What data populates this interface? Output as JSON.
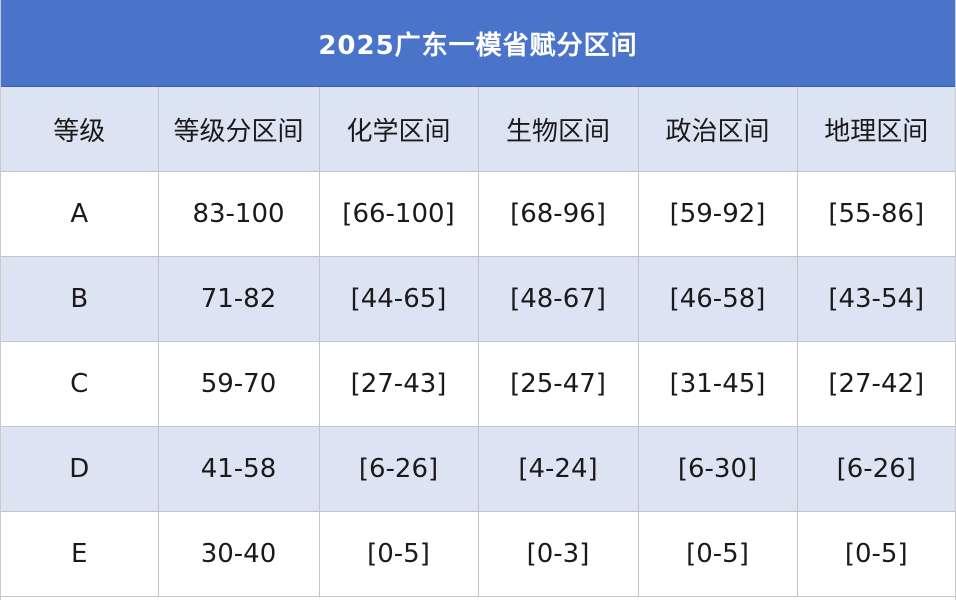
{
  "title": "2025广东一模省赋分区间",
  "headers": [
    "等级",
    "等级分区间",
    "化学区间",
    "生物区间",
    "政治区间",
    "地理区间"
  ],
  "rows": [
    [
      "A",
      "83-100",
      "[66-100]",
      "[68-96]",
      "[59-92]",
      "[55-86]"
    ],
    [
      "B",
      "71-82",
      "[44-65]",
      "[48-67]",
      "[46-58]",
      "[43-54]"
    ],
    [
      "C",
      "59-70",
      "[27-43]",
      "[25-47]",
      "[31-45]",
      "[27-42]"
    ],
    [
      "D",
      "41-58",
      "[6-26]",
      "[4-24]",
      "[6-30]",
      "[6-26]"
    ],
    [
      "E",
      "30-40",
      "[0-5]",
      "[0-3]",
      "[0-5]",
      "[0-5]"
    ]
  ],
  "colors": {
    "title_bg": "#4a74c9",
    "header_bg": "#dce4f4",
    "alt_row_bg": "#dce4f4",
    "plain_row_bg": "#ffffff"
  }
}
